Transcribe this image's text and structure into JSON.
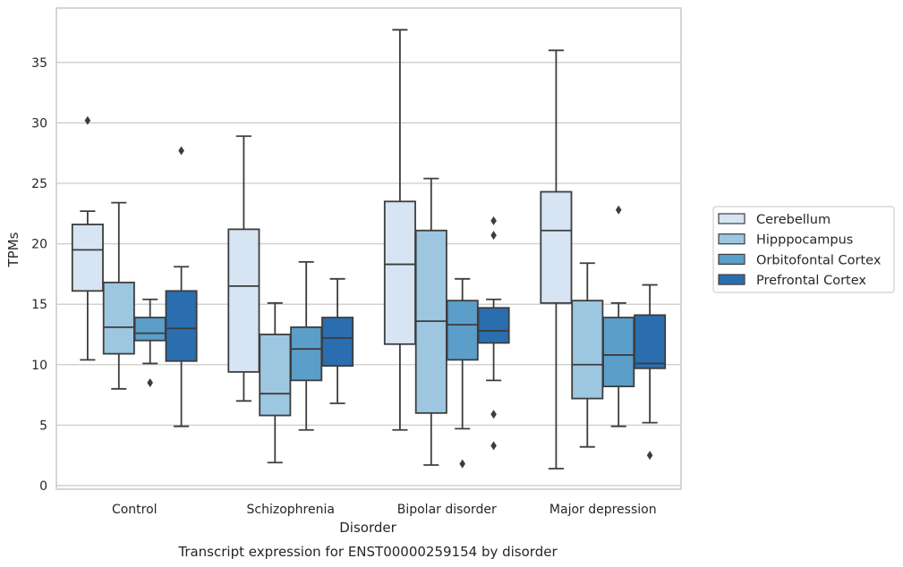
{
  "chart_data": {
    "type": "box",
    "caption": "Transcript expression for ENST00000259154 by disorder",
    "xlabel": "Disorder",
    "ylabel": "TPMs",
    "ylim": [
      -0.3,
      39.5
    ],
    "yticks": [
      0,
      5,
      10,
      15,
      20,
      25,
      30,
      35
    ],
    "grid": "horizontal",
    "legend_position": "right",
    "categories": [
      "Control",
      "Schizophrenia",
      "Bipolar disorder",
      "Major depression"
    ],
    "series": [
      {
        "name": "Cerebellum",
        "color": "#d6e4f3",
        "boxes": [
          {
            "whislo": 10.4,
            "q1": 16.1,
            "med": 19.5,
            "q3": 21.6,
            "whishi": 22.7,
            "fliers": [
              30.2
            ]
          },
          {
            "whislo": 7.0,
            "q1": 9.4,
            "med": 16.5,
            "q3": 21.2,
            "whishi": 28.9,
            "fliers": []
          },
          {
            "whislo": 4.6,
            "q1": 11.7,
            "med": 18.3,
            "q3": 23.5,
            "whishi": 37.7,
            "fliers": []
          },
          {
            "whislo": 1.4,
            "q1": 15.1,
            "med": 21.1,
            "q3": 24.3,
            "whishi": 36.0,
            "fliers": []
          }
        ]
      },
      {
        "name": "Hipppocampus",
        "color": "#9dc6e0",
        "boxes": [
          {
            "whislo": 8.0,
            "q1": 10.9,
            "med": 13.1,
            "q3": 16.8,
            "whishi": 23.4,
            "fliers": []
          },
          {
            "whislo": 1.9,
            "q1": 5.8,
            "med": 7.6,
            "q3": 12.5,
            "whishi": 15.1,
            "fliers": []
          },
          {
            "whislo": 1.7,
            "q1": 6.0,
            "med": 13.6,
            "q3": 21.1,
            "whishi": 25.4,
            "fliers": []
          },
          {
            "whislo": 3.2,
            "q1": 7.2,
            "med": 10.0,
            "q3": 15.3,
            "whishi": 18.4,
            "fliers": []
          }
        ]
      },
      {
        "name": "Orbitofontal Cortex",
        "color": "#5b9ec9",
        "boxes": [
          {
            "whislo": 10.1,
            "q1": 12.0,
            "med": 12.6,
            "q3": 13.9,
            "whishi": 15.4,
            "fliers": [
              8.5
            ]
          },
          {
            "whislo": 4.6,
            "q1": 8.7,
            "med": 11.3,
            "q3": 13.1,
            "whishi": 18.5,
            "fliers": []
          },
          {
            "whislo": 4.7,
            "q1": 10.4,
            "med": 13.3,
            "q3": 15.3,
            "whishi": 17.1,
            "fliers": [
              1.8
            ]
          },
          {
            "whislo": 4.9,
            "q1": 8.2,
            "med": 10.8,
            "q3": 13.9,
            "whishi": 15.1,
            "fliers": [
              22.8
            ]
          }
        ]
      },
      {
        "name": "Prefrontal Cortex",
        "color": "#2a6eb0",
        "boxes": [
          {
            "whislo": 4.9,
            "q1": 10.3,
            "med": 13.0,
            "q3": 16.1,
            "whishi": 18.1,
            "fliers": [
              27.7
            ]
          },
          {
            "whislo": 6.8,
            "q1": 9.9,
            "med": 12.2,
            "q3": 13.9,
            "whishi": 17.1,
            "fliers": []
          },
          {
            "whislo": 8.7,
            "q1": 11.8,
            "med": 12.8,
            "q3": 14.7,
            "whishi": 15.4,
            "fliers": [
              21.9,
              20.7,
              5.9,
              3.3
            ]
          },
          {
            "whislo": 5.2,
            "q1": 9.7,
            "med": 10.1,
            "q3": 14.1,
            "whishi": 16.6,
            "fliers": [
              2.5
            ]
          }
        ]
      }
    ]
  }
}
